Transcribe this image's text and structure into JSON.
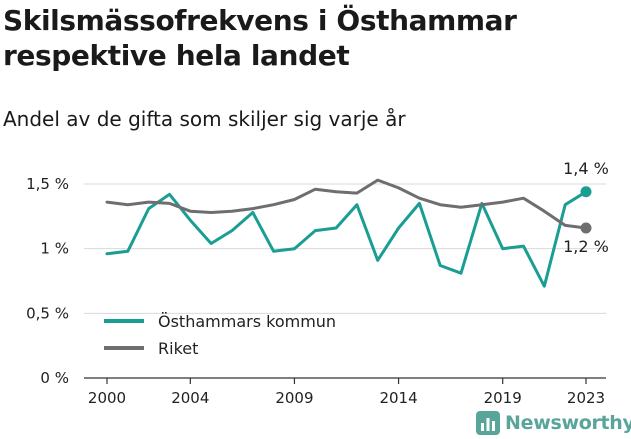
{
  "title": "Skilsmässofrekvens i Östhammar respektive hela landet",
  "subtitle": "Andel av de gifta som skiljer sig varje år",
  "brand": {
    "name": "Newsworthy",
    "color": "#5aa59a"
  },
  "chart_data": {
    "type": "line",
    "x": [
      2000,
      2001,
      2002,
      2003,
      2004,
      2005,
      2006,
      2007,
      2008,
      2009,
      2010,
      2011,
      2012,
      2013,
      2014,
      2015,
      2016,
      2017,
      2018,
      2019,
      2020,
      2021,
      2022,
      2023
    ],
    "series": [
      {
        "name": "Östhammars kommun",
        "color": "#1a9e94",
        "values": [
          0.96,
          0.98,
          1.31,
          1.42,
          1.22,
          1.04,
          1.14,
          1.28,
          0.98,
          1.0,
          1.14,
          1.16,
          1.34,
          0.91,
          1.16,
          1.35,
          0.87,
          0.81,
          1.35,
          1.0,
          1.02,
          0.71,
          1.34,
          1.44
        ],
        "end_label": "1,4 %"
      },
      {
        "name": "Riket",
        "color": "#6e6e70",
        "values": [
          1.36,
          1.34,
          1.36,
          1.35,
          1.29,
          1.28,
          1.29,
          1.31,
          1.34,
          1.38,
          1.46,
          1.44,
          1.43,
          1.53,
          1.47,
          1.39,
          1.34,
          1.32,
          1.34,
          1.36,
          1.39,
          1.29,
          1.18,
          1.16
        ],
        "end_label": "1,2 %"
      }
    ],
    "y_ticks": [
      {
        "value": 0,
        "label": "0 %"
      },
      {
        "value": 0.5,
        "label": "0,5 %"
      },
      {
        "value": 1.0,
        "label": "1 %"
      },
      {
        "value": 1.5,
        "label": "1,5 %"
      }
    ],
    "x_ticks": [
      {
        "value": 2000,
        "label": "2000"
      },
      {
        "value": 2004,
        "label": "2004"
      },
      {
        "value": 2009,
        "label": "2009"
      },
      {
        "value": 2014,
        "label": "2014"
      },
      {
        "value": 2019,
        "label": "2019"
      },
      {
        "value": 2023,
        "label": "2023"
      }
    ],
    "xlim": [
      2000,
      2023
    ],
    "ylim": [
      0,
      1.5
    ],
    "grid": true,
    "legend_position": "bottom-left",
    "xlabel": "",
    "ylabel": ""
  }
}
